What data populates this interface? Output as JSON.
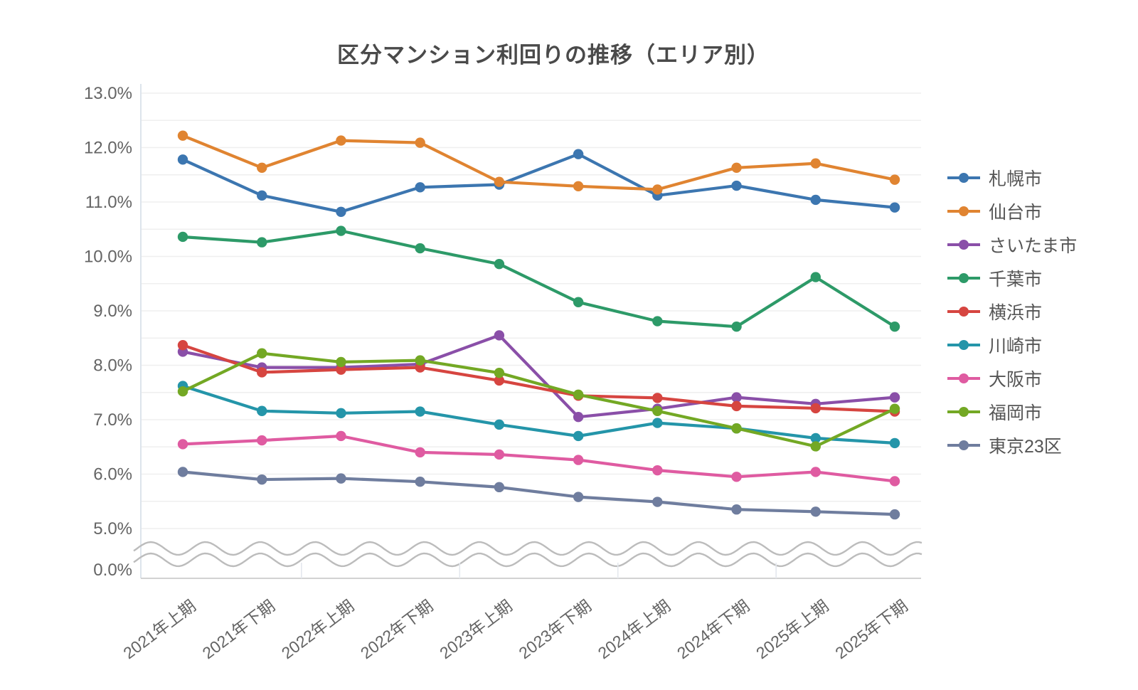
{
  "page": {
    "background": "#ffffff"
  },
  "chart_data": {
    "type": "line",
    "title": "区分マンション利回りの推移（エリア別）",
    "categories": [
      "2021年上期",
      "2021年下期",
      "2022年上期",
      "2022年下期",
      "2023年上期",
      "2023年下期",
      "2024年上期",
      "2024年下期",
      "2025年上期",
      "2025年下期"
    ],
    "series": [
      {
        "name": "札幌市",
        "color": "#3c76b0",
        "values": [
          11.78,
          11.12,
          10.82,
          11.27,
          11.32,
          11.88,
          11.12,
          11.3,
          11.04,
          10.9
        ]
      },
      {
        "name": "仙台市",
        "color": "#e08431",
        "values": [
          12.22,
          11.63,
          12.13,
          12.09,
          11.37,
          11.29,
          11.23,
          11.63,
          11.71,
          11.41
        ]
      },
      {
        "name": "さいたま市",
        "color": "#8a4fa8",
        "values": [
          8.25,
          7.96,
          7.96,
          8.02,
          8.55,
          7.05,
          7.2,
          7.41,
          7.29,
          7.41
        ]
      },
      {
        "name": "千葉市",
        "color": "#2d9a68",
        "values": [
          10.36,
          10.26,
          10.47,
          10.15,
          9.86,
          9.16,
          8.81,
          8.71,
          9.62,
          8.71
        ]
      },
      {
        "name": "横浜市",
        "color": "#d64540",
        "values": [
          8.37,
          7.87,
          7.92,
          7.96,
          7.72,
          7.44,
          7.4,
          7.25,
          7.21,
          7.15
        ]
      },
      {
        "name": "川崎市",
        "color": "#2495a9",
        "values": [
          7.62,
          7.16,
          7.12,
          7.15,
          6.91,
          6.7,
          6.94,
          6.84,
          6.66,
          6.57
        ]
      },
      {
        "name": "大阪市",
        "color": "#df5ba1",
        "values": [
          6.55,
          6.62,
          6.7,
          6.4,
          6.36,
          6.26,
          6.07,
          5.95,
          6.04,
          5.87
        ]
      },
      {
        "name": "福岡市",
        "color": "#73a824",
        "values": [
          7.52,
          8.22,
          8.06,
          8.09,
          7.86,
          7.46,
          7.16,
          6.84,
          6.51,
          7.2
        ]
      },
      {
        "name": "東京23区",
        "color": "#6f7d9e",
        "values": [
          6.04,
          5.9,
          5.92,
          5.86,
          5.76,
          5.58,
          5.49,
          5.35,
          5.31,
          5.26
        ]
      }
    ],
    "y_axis": {
      "unit": "%",
      "ticks": [
        {
          "label": "13.0%",
          "value": 13
        },
        {
          "label": "12.0%",
          "value": 12
        },
        {
          "label": "11.0%",
          "value": 11
        },
        {
          "label": "10.0%",
          "value": 10
        },
        {
          "label": "9.0%",
          "value": 9
        },
        {
          "label": "8.0%",
          "value": 8
        },
        {
          "label": "7.0%",
          "value": 7
        },
        {
          "label": "6.0%",
          "value": 6
        },
        {
          "label": "5.0%",
          "value": 5
        },
        {
          "label": "0.0%",
          "value": 0
        }
      ],
      "range_main": [
        5,
        13
      ],
      "gridline_step": 0.5,
      "axis_break": {
        "between": [
          0,
          5
        ],
        "style": "wavy"
      }
    },
    "legend_position": "right",
    "grid": true,
    "colors": {
      "gridline": "#efefef",
      "axis_left_border": "#dde4ec",
      "axis_bottom_border": "#d2d2d2",
      "break_wave": "#bcbcbc",
      "tick_text": "#646464",
      "title_text": "#4a4a4a",
      "legend_text": "#555555"
    }
  }
}
